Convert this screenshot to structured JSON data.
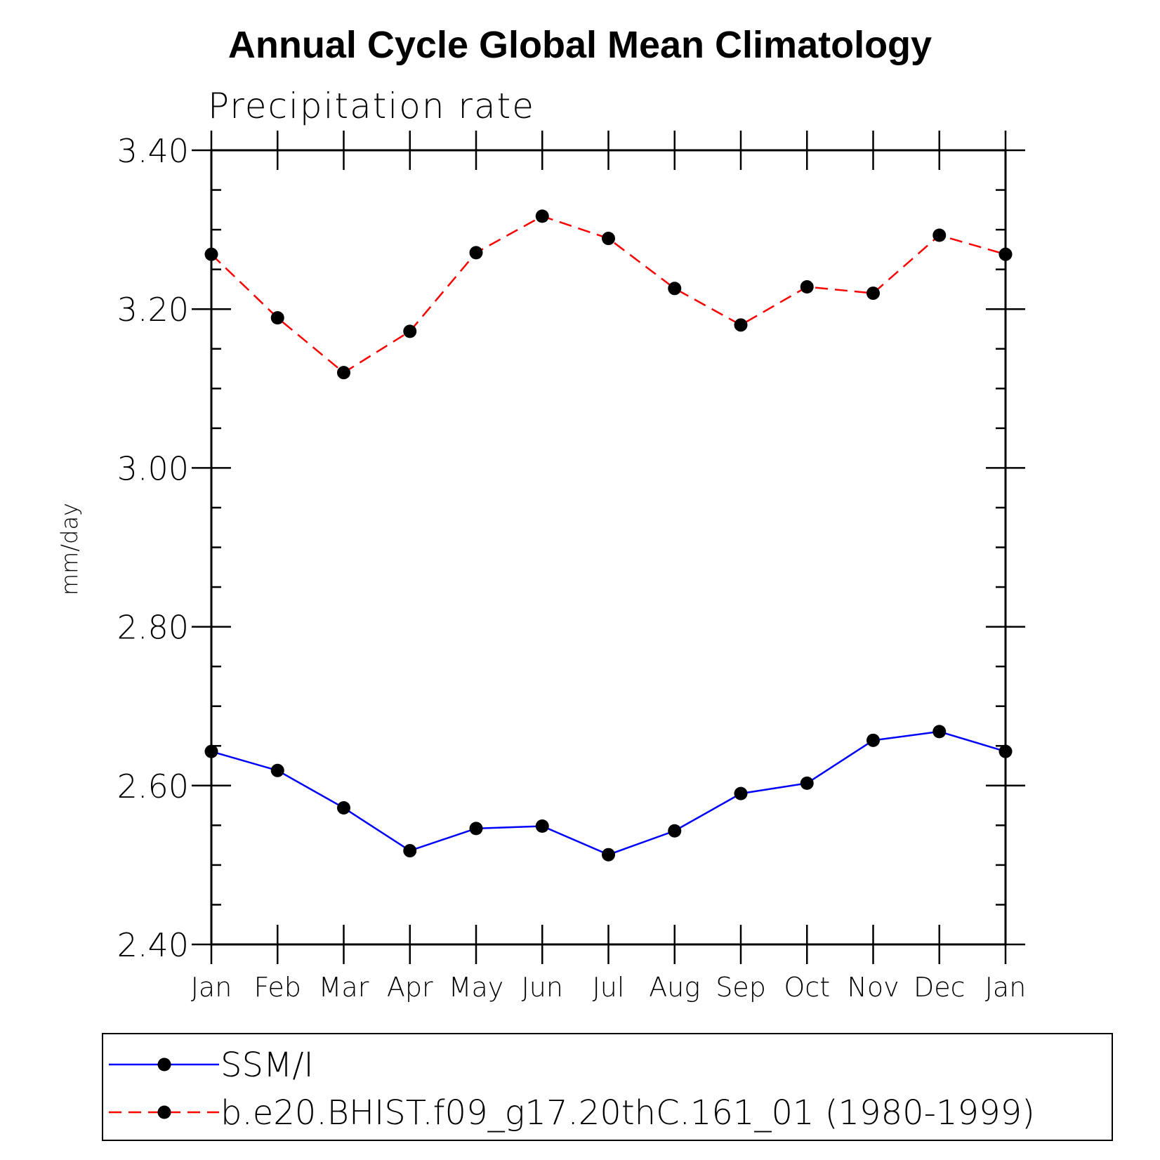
{
  "chart_data": {
    "type": "line",
    "title": "Annual Cycle Global Mean Climatology",
    "subtitle": "Precipitation rate",
    "xlabel": "",
    "ylabel": "mm/day",
    "categories": [
      "Jan",
      "Feb",
      "Mar",
      "Apr",
      "May",
      "Jun",
      "Jul",
      "Aug",
      "Sep",
      "Oct",
      "Nov",
      "Dec",
      "Jan"
    ],
    "ylim": [
      2.4,
      3.4
    ],
    "yticks": [
      "2.40",
      "2.60",
      "2.80",
      "3.00",
      "3.20",
      "3.40"
    ],
    "grid": false,
    "legend_position": "bottom",
    "series": [
      {
        "name": "SSM/I",
        "color": "#0000ff",
        "line_style": "solid",
        "marker": "filled-circle",
        "values": [
          2.643,
          2.619,
          2.572,
          2.518,
          2.546,
          2.549,
          2.513,
          2.543,
          2.59,
          2.603,
          2.657,
          2.668,
          2.643
        ]
      },
      {
        "name": "b.e20.BHIST.f09_g17.20thC.161_01 (1980-1999)",
        "color": "#ff0000",
        "line_style": "dashed",
        "marker": "filled-circle",
        "values": [
          3.269,
          3.189,
          3.12,
          3.172,
          3.271,
          3.317,
          3.289,
          3.226,
          3.18,
          3.228,
          3.22,
          3.293,
          3.269
        ]
      }
    ]
  }
}
